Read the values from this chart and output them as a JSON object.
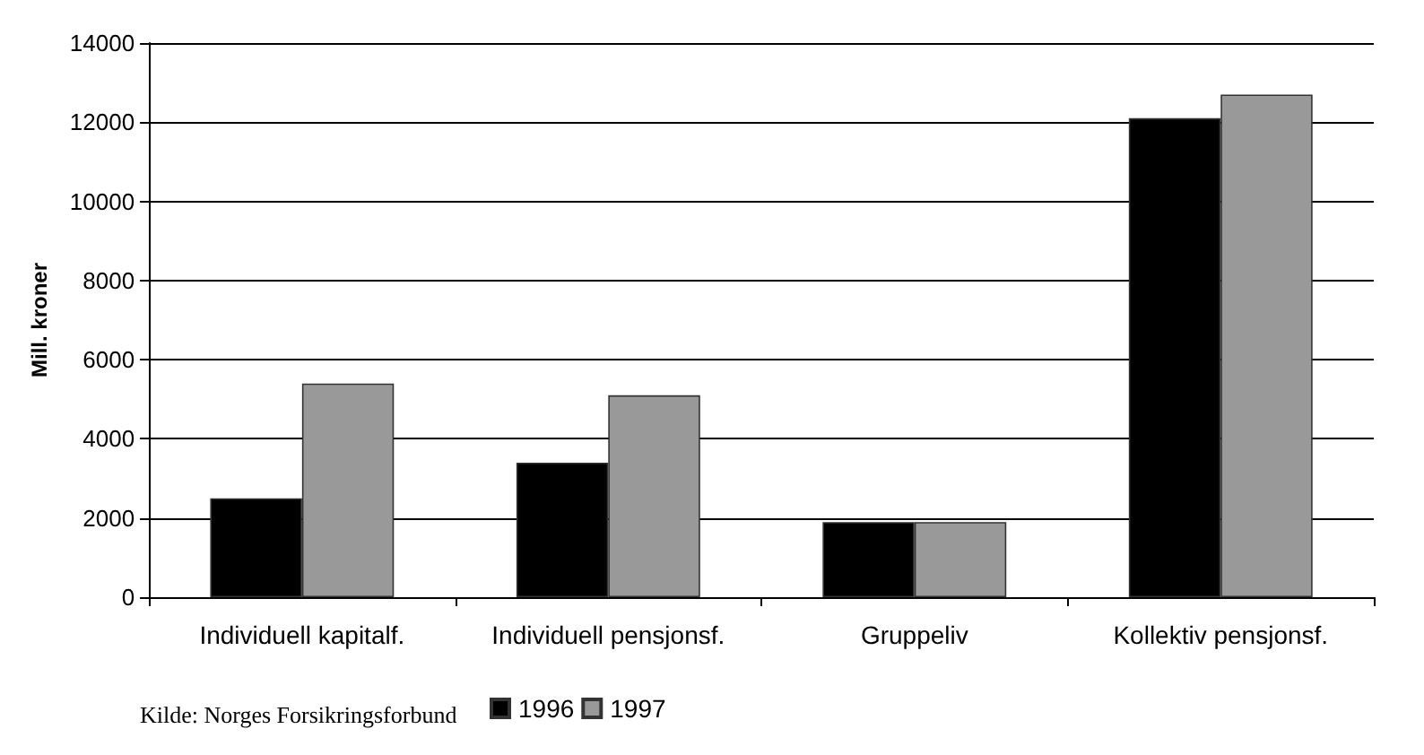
{
  "chart_data": {
    "type": "bar",
    "ylabel": "Mill. kroner",
    "categories": [
      "Individuell kapitalf.",
      "Individuell pensjonsf.",
      "Gruppeliv",
      "Kollektiv pensjonsf."
    ],
    "series": [
      {
        "name": "1996",
        "color": "#000000",
        "values": [
          2500,
          3400,
          1900,
          12100
        ]
      },
      {
        "name": "1997",
        "color": "#999999",
        "values": [
          5400,
          5100,
          1900,
          12700
        ]
      }
    ],
    "ylim": [
      0,
      14000
    ],
    "yticks": [
      0,
      2000,
      4000,
      6000,
      8000,
      10000,
      12000,
      14000
    ],
    "grid": "y",
    "legend": "bottom",
    "annotations": [
      "Kilde: Norges Forsikringsforbund"
    ]
  }
}
